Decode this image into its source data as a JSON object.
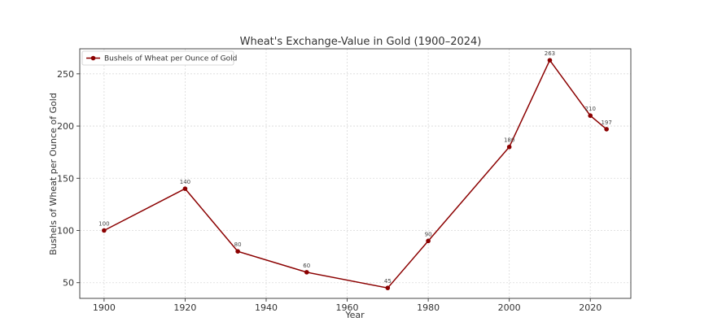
{
  "chart_data": {
    "type": "line",
    "title": "Wheat's Exchange-Value in Gold (1900–2024)",
    "xlabel": "Year",
    "ylabel": "Bushels of Wheat per Ounce of Gold",
    "xlim": [
      1894,
      2030
    ],
    "ylim": [
      35,
      274
    ],
    "x_ticks": [
      1900,
      1920,
      1940,
      1960,
      1980,
      2000,
      2020
    ],
    "y_ticks": [
      50,
      100,
      150,
      200,
      250
    ],
    "grid": true,
    "legend": "top-left",
    "series": [
      {
        "name": "Bushels of Wheat per Ounce of Gold",
        "color": "#8b0000",
        "x": [
          1900,
          1920,
          1933,
          1950,
          1970,
          1980,
          2000,
          2010,
          2020,
          2024
        ],
        "values": [
          100,
          140,
          80,
          60,
          45,
          90,
          180,
          263,
          210,
          197
        ],
        "labels": [
          "100",
          "140",
          "80",
          "60",
          "45",
          "90",
          "180",
          "263",
          "210",
          "197"
        ]
      }
    ]
  }
}
